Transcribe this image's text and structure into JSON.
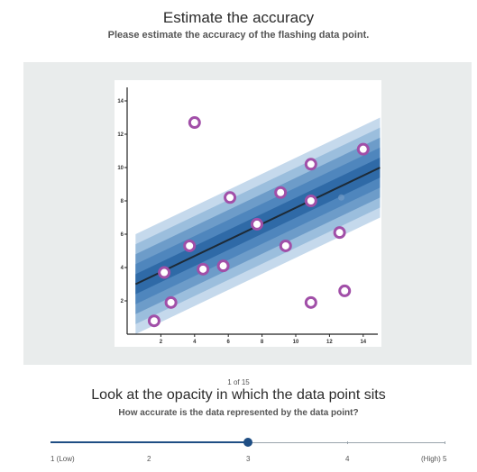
{
  "header": {
    "title": "Estimate the accuracy",
    "subtitle": "Please estimate the accuracy of the flashing data point."
  },
  "chart_data": {
    "type": "scatter",
    "x_ticks": [
      2,
      4,
      6,
      8,
      10,
      12,
      14
    ],
    "y_ticks": [
      2,
      4,
      6,
      8,
      10,
      12,
      14
    ],
    "xlim": [
      0,
      15
    ],
    "ylim": [
      0,
      15
    ],
    "regression_line": {
      "x": [
        0.5,
        15
      ],
      "y": [
        3.0,
        10.0
      ]
    },
    "confidence_bands_half_width": [
      0.6,
      1.2,
      1.8,
      2.4,
      3.0
    ],
    "band_colors": [
      "#c5d9ec",
      "#9bbedd",
      "#6d9cc9",
      "#4f86bd",
      "#2f6aa7"
    ],
    "points": [
      {
        "x": 4.0,
        "y": 12.7
      },
      {
        "x": 14.0,
        "y": 11.1
      },
      {
        "x": 10.9,
        "y": 10.2
      },
      {
        "x": 6.1,
        "y": 8.2
      },
      {
        "x": 9.1,
        "y": 8.5
      },
      {
        "x": 10.9,
        "y": 8.0
      },
      {
        "x": 7.7,
        "y": 6.6
      },
      {
        "x": 12.6,
        "y": 6.1
      },
      {
        "x": 3.7,
        "y": 5.3
      },
      {
        "x": 9.4,
        "y": 5.3
      },
      {
        "x": 2.2,
        "y": 3.7
      },
      {
        "x": 4.5,
        "y": 3.9
      },
      {
        "x": 5.7,
        "y": 4.1
      },
      {
        "x": 2.6,
        "y": 1.9
      },
      {
        "x": 1.6,
        "y": 0.8
      },
      {
        "x": 10.9,
        "y": 1.9
      },
      {
        "x": 12.9,
        "y": 2.6
      }
    ],
    "faint_point": {
      "x": 12.7,
      "y": 8.2
    },
    "point_color": "#a14fa8"
  },
  "question": {
    "counter": "1 of 15",
    "prompt": "Look at the opacity in which the data point sits",
    "sub": "How accurate is the data represented by the data point?"
  },
  "slider": {
    "value": 3,
    "min": 1,
    "max": 5,
    "labels": [
      "1 (Low)",
      "2",
      "3",
      "4",
      "(High) 5"
    ],
    "accent": "#1f4e84"
  }
}
